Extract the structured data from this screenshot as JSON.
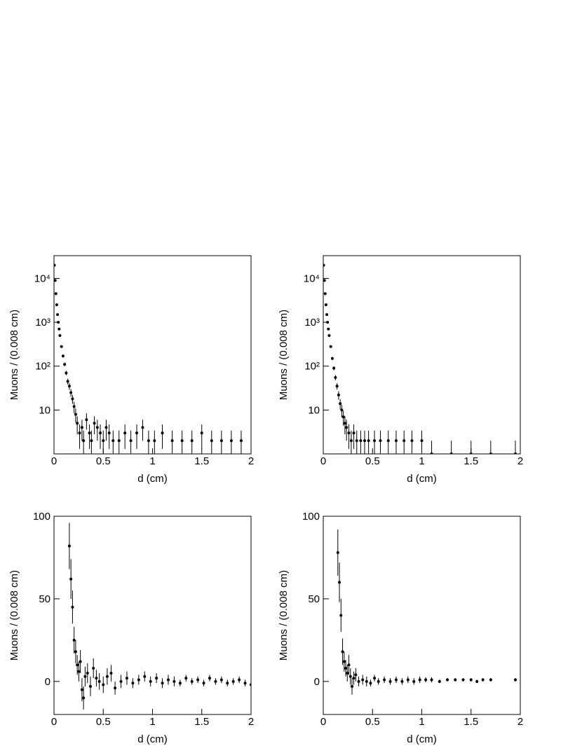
{
  "chart_data": [
    {
      "type": "scatter",
      "log_y": true,
      "xlabel": "d (cm)",
      "ylabel": "Muons / (0.008 cm)",
      "xlim": [
        0,
        2
      ],
      "ylim": [
        1,
        33000
      ],
      "xticks": [
        0,
        0.5,
        1,
        1.5,
        2
      ],
      "yticks": [
        10,
        {
          "value": 100,
          "label": "10²"
        },
        {
          "value": 1000,
          "label": "10³"
        },
        {
          "value": 10000,
          "label": "10⁴"
        }
      ],
      "series": [
        {
          "color": "#000000",
          "x": [
            0.004,
            0.012,
            0.02,
            0.028,
            0.036,
            0.044,
            0.052,
            0.06,
            0.076,
            0.092,
            0.108,
            0.124,
            0.14,
            0.156,
            0.172,
            0.188,
            0.204,
            0.22,
            0.236,
            0.26,
            0.284,
            0.3,
            0.33,
            0.36,
            0.38,
            0.41,
            0.44,
            0.47,
            0.5,
            0.53,
            0.56,
            0.6,
            0.66,
            0.72,
            0.78,
            0.84,
            0.9,
            0.96,
            1.02,
            1.1,
            1.2,
            1.3,
            1.4,
            1.5,
            1.6,
            1.7,
            1.8,
            1.9
          ],
          "values": [
            20000,
            9000,
            4500,
            2500,
            1500,
            1000,
            700,
            500,
            280,
            170,
            110,
            70,
            45,
            35,
            25,
            18,
            12,
            8,
            5,
            3,
            4,
            2,
            6,
            3,
            2,
            5,
            4,
            3,
            2,
            4,
            3,
            2,
            2,
            3,
            2,
            3,
            4,
            2,
            2,
            3,
            2,
            2,
            2,
            3,
            2,
            2,
            2,
            2
          ],
          "errors": [
            141,
            95,
            67,
            50,
            39,
            32,
            26,
            22,
            17,
            13,
            10,
            8,
            7,
            6,
            5,
            4.2,
            3.5,
            2.8,
            2.2,
            1.7,
            2,
            1.4,
            2.4,
            1.7,
            1.4,
            2.2,
            2,
            1.7,
            1.4,
            2,
            1.7,
            1.4,
            1.4,
            1.7,
            1.4,
            1.7,
            2,
            1.4,
            1.4,
            1.7,
            1.4,
            1.4,
            1.4,
            1.7,
            1.4,
            1.4,
            1.4,
            1.4
          ]
        }
      ]
    },
    {
      "type": "scatter",
      "log_y": true,
      "xlabel": "d (cm)",
      "ylabel": "Muons / (0.008 cm)",
      "xlim": [
        0,
        2
      ],
      "ylim": [
        1,
        33000
      ],
      "xticks": [
        0,
        0.5,
        1,
        1.5,
        2
      ],
      "yticks": [
        10,
        {
          "value": 100,
          "label": "10²"
        },
        {
          "value": 1000,
          "label": "10³"
        },
        {
          "value": 10000,
          "label": "10⁴"
        }
      ],
      "series": [
        {
          "color": "#000000",
          "x": [
            0.004,
            0.012,
            0.02,
            0.028,
            0.036,
            0.044,
            0.052,
            0.06,
            0.076,
            0.092,
            0.108,
            0.124,
            0.14,
            0.156,
            0.172,
            0.188,
            0.204,
            0.22,
            0.236,
            0.26,
            0.284,
            0.31,
            0.34,
            0.38,
            0.42,
            0.46,
            0.52,
            0.58,
            0.66,
            0.74,
            0.82,
            0.9,
            1.0,
            1.1,
            1.3,
            1.5,
            1.7,
            1.95
          ],
          "values": [
            20000,
            9000,
            4500,
            2500,
            1500,
            1000,
            700,
            500,
            280,
            150,
            90,
            55,
            35,
            22,
            14,
            10,
            7,
            5,
            4,
            3,
            2,
            3,
            2,
            2,
            2,
            2,
            2,
            2,
            2,
            2,
            2,
            2,
            2,
            1,
            1,
            1,
            1,
            1
          ],
          "errors": [
            141,
            95,
            67,
            50,
            39,
            32,
            26,
            22,
            17,
            12,
            9.5,
            7.4,
            5.9,
            4.7,
            3.7,
            3.2,
            2.6,
            2.2,
            2,
            1.7,
            1.4,
            1.7,
            1.4,
            1.4,
            1.4,
            1.4,
            1.4,
            1.4,
            1.4,
            1.4,
            1.4,
            1.4,
            1.4,
            1,
            1,
            1,
            1,
            1
          ]
        }
      ]
    },
    {
      "type": "scatter",
      "log_y": false,
      "xlabel": "d (cm)",
      "ylabel": "Muons / (0.008 cm)",
      "xlim": [
        0,
        2
      ],
      "ylim": [
        -20,
        100
      ],
      "xticks": [
        0,
        0.5,
        1,
        1.5,
        2
      ],
      "yticks": [
        0,
        50,
        100
      ],
      "series": [
        {
          "color": "#000000",
          "x": [
            0.156,
            0.172,
            0.188,
            0.204,
            0.22,
            0.236,
            0.252,
            0.268,
            0.284,
            0.3,
            0.316,
            0.34,
            0.37,
            0.4,
            0.43,
            0.46,
            0.5,
            0.54,
            0.58,
            0.62,
            0.68,
            0.74,
            0.8,
            0.86,
            0.92,
            0.98,
            1.04,
            1.1,
            1.16,
            1.22,
            1.28,
            1.34,
            1.4,
            1.46,
            1.52,
            1.58,
            1.64,
            1.7,
            1.76,
            1.82,
            1.88,
            1.94,
            2.0
          ],
          "values": [
            82,
            62,
            45,
            25,
            18,
            10,
            6,
            12,
            -5,
            -10,
            3,
            5,
            -3,
            8,
            2,
            0,
            -2,
            3,
            5,
            -4,
            0,
            2,
            -1,
            1,
            3,
            0,
            2,
            -1,
            1,
            0,
            -1,
            2,
            0,
            1,
            -1,
            2,
            0,
            1,
            -1,
            0,
            1,
            -1,
            -2
          ],
          "errors": [
            14,
            12,
            10,
            8,
            7,
            6,
            6,
            7,
            7,
            7,
            6,
            6,
            6,
            6,
            5,
            5,
            5,
            5,
            5,
            4,
            4,
            4,
            3,
            3,
            3,
            3,
            3,
            3,
            3,
            3,
            2,
            2,
            2,
            2,
            2,
            2,
            2,
            2,
            2,
            2,
            2,
            2,
            2
          ]
        }
      ]
    },
    {
      "type": "scatter",
      "log_y": false,
      "xlabel": "d (cm)",
      "ylabel": "Muons / (0.008 cm)",
      "xlim": [
        0,
        2
      ],
      "ylim": [
        -20,
        100
      ],
      "xticks": [
        0,
        0.5,
        1,
        1.5,
        2
      ],
      "yticks": [
        0,
        50,
        100
      ],
      "series": [
        {
          "color": "#000000",
          "x": [
            0.148,
            0.164,
            0.18,
            0.196,
            0.212,
            0.228,
            0.244,
            0.26,
            0.276,
            0.292,
            0.31,
            0.33,
            0.36,
            0.4,
            0.44,
            0.48,
            0.52,
            0.56,
            0.62,
            0.68,
            0.74,
            0.8,
            0.86,
            0.92,
            0.98,
            1.04,
            1.1,
            1.18,
            1.26,
            1.34,
            1.42,
            1.5,
            1.56,
            1.62,
            1.7,
            1.95
          ],
          "values": [
            78,
            60,
            40,
            18,
            12,
            8,
            5,
            10,
            3,
            -3,
            2,
            4,
            0,
            1,
            0,
            -1,
            2,
            0,
            1,
            0,
            1,
            0,
            1,
            0,
            1,
            1,
            1,
            0,
            1,
            1,
            1,
            1,
            0,
            1,
            1,
            1
          ],
          "errors": [
            14,
            12,
            10,
            8,
            6,
            5,
            5,
            6,
            5,
            5,
            4,
            4,
            3,
            3,
            3,
            2,
            2,
            2,
            2,
            2,
            2,
            2,
            2,
            2,
            2,
            1.5,
            1.5,
            1,
            1,
            1,
            1,
            1,
            1,
            1,
            1,
            1
          ]
        }
      ]
    }
  ]
}
